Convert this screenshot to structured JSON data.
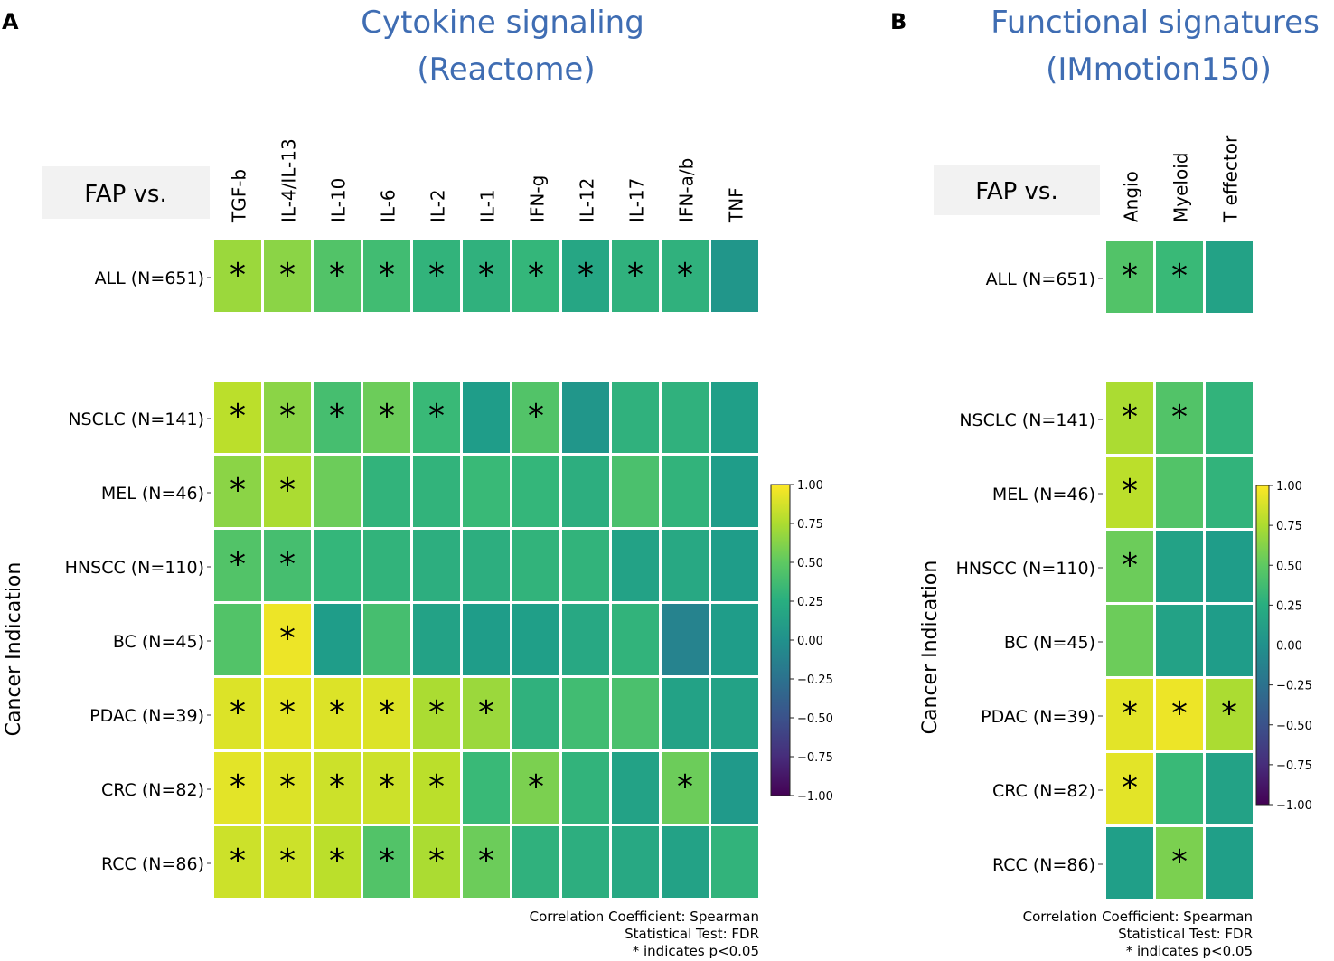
{
  "chart_data": [
    {
      "type": "heatmap",
      "panel": "A",
      "title_line1": "Cytokine signaling",
      "title_line2": "(Reactome)",
      "corner_label": "FAP vs.",
      "ylabel": "Cancer Indication",
      "columns": [
        "TGF-b",
        "IL-4/IL-13",
        "IL-10",
        "IL-6",
        "IL-2",
        "IL-1",
        "IFN-g",
        "IL-12",
        "IL-17",
        "IFN-a/b",
        "TNF"
      ],
      "rows": [
        "ALL (N=651)",
        "NSCLC (N=141)",
        "MEL (N=46)",
        "HNSCC (N=110)",
        "BC (N=45)",
        "PDAC (N=39)",
        "CRC (N=82)",
        "RCC (N=86)"
      ],
      "values": [
        [
          0.7,
          0.65,
          0.45,
          0.38,
          0.3,
          0.28,
          0.32,
          0.18,
          0.28,
          0.28,
          0.05
        ],
        [
          0.8,
          0.65,
          0.4,
          0.55,
          0.35,
          0.1,
          0.45,
          0.05,
          0.28,
          0.28,
          0.12
        ],
        [
          0.65,
          0.75,
          0.55,
          0.3,
          0.3,
          0.35,
          0.32,
          0.25,
          0.42,
          0.3,
          0.1
        ],
        [
          0.45,
          0.4,
          0.32,
          0.3,
          0.25,
          0.25,
          0.3,
          0.3,
          0.15,
          0.2,
          0.1
        ],
        [
          0.45,
          0.95,
          0.1,
          0.4,
          0.15,
          0.1,
          0.12,
          0.2,
          0.3,
          -0.1,
          0.1
        ],
        [
          0.9,
          0.92,
          0.9,
          0.9,
          0.75,
          0.7,
          0.28,
          0.38,
          0.42,
          0.15,
          0.15
        ],
        [
          0.92,
          0.9,
          0.85,
          0.85,
          0.8,
          0.35,
          0.6,
          0.3,
          0.15,
          0.55,
          0.08
        ],
        [
          0.85,
          0.85,
          0.8,
          0.45,
          0.75,
          0.55,
          0.28,
          0.25,
          0.2,
          0.15,
          0.3
        ]
      ],
      "significant": [
        [
          1,
          1,
          1,
          1,
          1,
          1,
          1,
          1,
          1,
          1,
          0
        ],
        [
          1,
          1,
          1,
          1,
          1,
          0,
          1,
          0,
          0,
          0,
          0
        ],
        [
          1,
          1,
          0,
          0,
          0,
          0,
          0,
          0,
          0,
          0,
          0
        ],
        [
          1,
          1,
          0,
          0,
          0,
          0,
          0,
          0,
          0,
          0,
          0
        ],
        [
          0,
          1,
          0,
          0,
          0,
          0,
          0,
          0,
          0,
          0,
          0
        ],
        [
          1,
          1,
          1,
          1,
          1,
          1,
          0,
          0,
          0,
          0,
          0
        ],
        [
          1,
          1,
          1,
          1,
          1,
          0,
          1,
          0,
          0,
          1,
          0
        ],
        [
          1,
          1,
          1,
          1,
          1,
          1,
          0,
          0,
          0,
          0,
          0
        ]
      ],
      "colorbar": {
        "range": [
          -1.0,
          1.0
        ],
        "ticks": [
          "1.00",
          "0.75",
          "0.50",
          "0.25",
          "0.00",
          "−0.25",
          "−0.50",
          "−0.75",
          "−1.00"
        ]
      },
      "footnote": [
        "Correlation Coefficient: Spearman",
        "Statistical Test: FDR",
        "* indicates p<0.05"
      ]
    },
    {
      "type": "heatmap",
      "panel": "B",
      "title_line1": "Functional signatures",
      "title_line2": "(IMmotion150)",
      "corner_label": "FAP vs.",
      "ylabel": "Cancer Indication",
      "columns": [
        "Angio",
        "Myeloid",
        "T effector"
      ],
      "rows": [
        "ALL (N=651)",
        "NSCLC (N=141)",
        "MEL (N=46)",
        "HNSCC (N=110)",
        "BC (N=45)",
        "PDAC (N=39)",
        "CRC (N=82)",
        "RCC (N=86)"
      ],
      "values": [
        [
          0.45,
          0.35,
          0.15
        ],
        [
          0.75,
          0.45,
          0.3
        ],
        [
          0.8,
          0.45,
          0.3
        ],
        [
          0.55,
          0.15,
          0.1
        ],
        [
          0.55,
          0.15,
          0.1
        ],
        [
          0.92,
          0.95,
          0.75
        ],
        [
          0.92,
          0.35,
          0.15
        ],
        [
          0.12,
          0.6,
          0.12
        ]
      ],
      "significant": [
        [
          1,
          1,
          0
        ],
        [
          1,
          1,
          0
        ],
        [
          1,
          0,
          0
        ],
        [
          1,
          0,
          0
        ],
        [
          0,
          0,
          0
        ],
        [
          1,
          1,
          1
        ],
        [
          1,
          0,
          0
        ],
        [
          0,
          1,
          0
        ]
      ],
      "colorbar": {
        "range": [
          -1.0,
          1.0
        ],
        "ticks": [
          "1.00",
          "0.75",
          "0.50",
          "0.25",
          "0.00",
          "−0.25",
          "−0.50",
          "−0.75",
          "−1.00"
        ]
      },
      "footnote": [
        "Correlation Coefficient: Spearman",
        "Statistical Test: FDR",
        "* indicates p<0.05"
      ]
    }
  ]
}
